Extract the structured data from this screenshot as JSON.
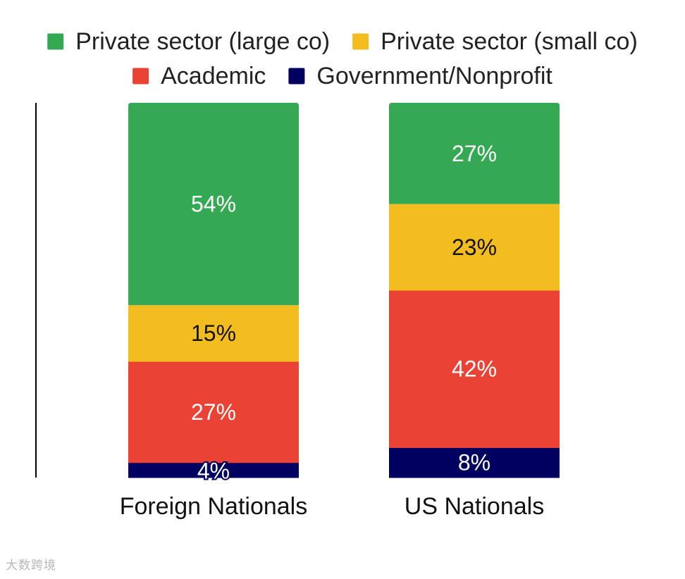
{
  "chart_data": {
    "type": "bar",
    "stacked": true,
    "percent_stacked": true,
    "categories": [
      "Foreign Nationals",
      "US Nationals"
    ],
    "series": [
      {
        "name": "Private sector (large co)",
        "color": "#34A853",
        "label_color": "#ffffff",
        "values": [
          54,
          27
        ],
        "labels": [
          "54%",
          "27%"
        ]
      },
      {
        "name": "Private sector (small co)",
        "color": "#F4BD1F",
        "label_color": "#111111",
        "values": [
          15,
          23
        ],
        "labels": [
          "15%",
          "23%"
        ]
      },
      {
        "name": "Academic",
        "color": "#EA4335",
        "label_color": "#ffffff",
        "values": [
          27,
          42
        ],
        "labels": [
          "27%",
          "42%"
        ]
      },
      {
        "name": "Government/Nonprofit",
        "color": "#000060",
        "label_color": "#ffffff",
        "values": [
          4,
          8
        ],
        "labels": [
          "4%",
          "8%"
        ]
      }
    ],
    "ylim": [
      0,
      100
    ],
    "legend_position": "top",
    "grid": false
  },
  "watermark": "大数跨境"
}
